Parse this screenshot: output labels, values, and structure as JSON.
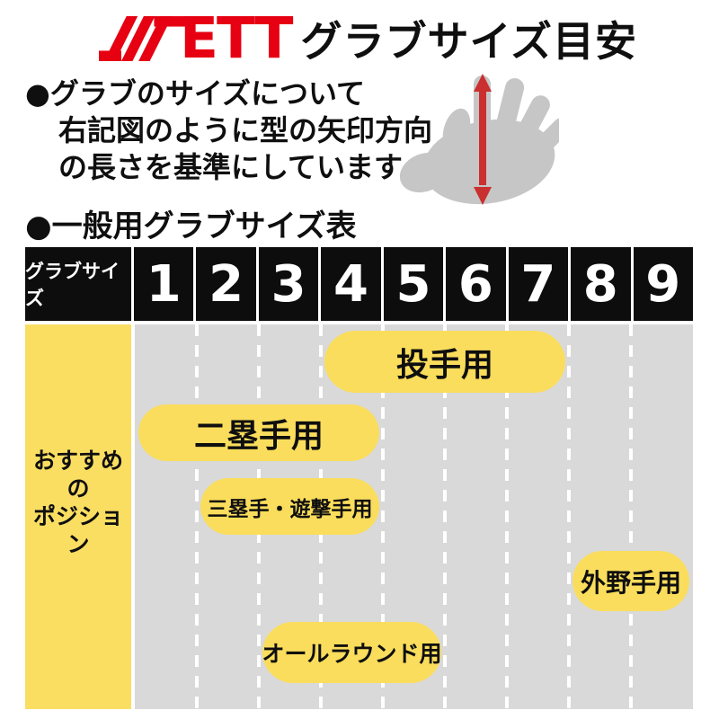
{
  "header": {
    "brand": "ZETT",
    "brand_logo_text": "ETT",
    "title": "グラブサイズ目安"
  },
  "intro": {
    "lines": [
      "●グラブのサイズについて",
      "右記図のように型の矢印方向",
      "の長さを基準にしています。"
    ]
  },
  "hand_figure": {
    "icon": "glove-hand-with-vertical-measure-arrow"
  },
  "section": {
    "heading": "●一般用グラブサイズ表"
  },
  "chart_data": {
    "type": "table",
    "title": "一般用グラブサイズ表",
    "row_header": "グラブサイズ",
    "sizes": [
      "1",
      "2",
      "3",
      "4",
      "5",
      "6",
      "7",
      "8",
      "9"
    ],
    "side_label_lines": [
      "おすすめの",
      "ポジション"
    ],
    "positions": [
      {
        "label": "投手用",
        "size_min": 4,
        "size_max": 7
      },
      {
        "label": "二塁手用",
        "size_min": 1,
        "size_max": 4
      },
      {
        "label": "三塁手・遊撃手用",
        "size_min": 2,
        "size_max": 4
      },
      {
        "label": "外野手用",
        "size_min": 8,
        "size_max": 9
      },
      {
        "label": "オールラウンド用",
        "size_min": 3,
        "size_max": 5
      }
    ]
  },
  "colors": {
    "brand_red": "#e60012",
    "arrow_red": "#c9302f",
    "bubble_yellow": "#fadd5c",
    "side_yellow": "#fade62",
    "grid_gray": "#d9d9d9",
    "hand_gray": "#c6c6c6",
    "header_black": "#0d0d0d"
  }
}
